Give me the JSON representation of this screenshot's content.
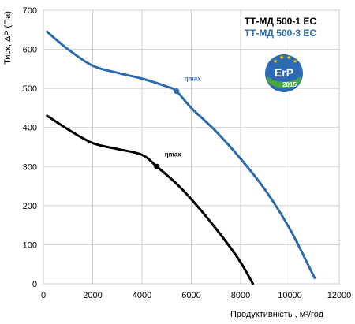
{
  "chart_data": {
    "type": "line",
    "xlabel": "Продуктивність , м³/год",
    "ylabel": "Тиск, ΔP (Па)",
    "xlim": [
      0,
      12000
    ],
    "ylim": [
      0,
      700
    ],
    "xticks": [
      0,
      2000,
      4000,
      6000,
      8000,
      10000,
      12000
    ],
    "yticks": [
      0,
      100,
      200,
      300,
      400,
      500,
      600,
      700
    ],
    "grid": true,
    "legend_position": "top-right",
    "series": [
      {
        "name": "ТТ-МД 500-1 ЕС",
        "color": "#000000",
        "x": [
          150,
          1000,
          2000,
          3000,
          4000,
          4600,
          5500,
          6500,
          7500,
          8000,
          8500
        ],
        "y": [
          430,
          395,
          360,
          345,
          330,
          300,
          250,
          180,
          100,
          55,
          0
        ]
      },
      {
        "name": "ТТ-МД 500-3 ЕС",
        "color": "#2b6cb0",
        "x": [
          150,
          1000,
          2000,
          3000,
          4000,
          5000,
          5400,
          6000,
          7000,
          8000,
          9000,
          10000,
          11000
        ],
        "y": [
          645,
          600,
          558,
          540,
          525,
          505,
          493,
          450,
          390,
          320,
          240,
          140,
          15
        ]
      }
    ],
    "annotations": [
      {
        "text": "ηmax",
        "x": 4600,
        "y": 300,
        "series": "ТТ-МД 500-1 ЕС"
      },
      {
        "text": "ηmax",
        "x": 5400,
        "y": 493,
        "series": "ТТ-МД 500-3 ЕС"
      }
    ]
  },
  "badge": {
    "label": "ErP",
    "year": "2015"
  }
}
